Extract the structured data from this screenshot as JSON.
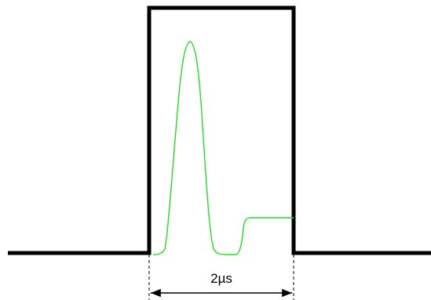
{
  "diagram": {
    "measurement_label": "2µs",
    "colors": {
      "pulse": "#000000",
      "signal": "#22dd22",
      "dimension": "#000000",
      "background": "#ffffff"
    }
  }
}
